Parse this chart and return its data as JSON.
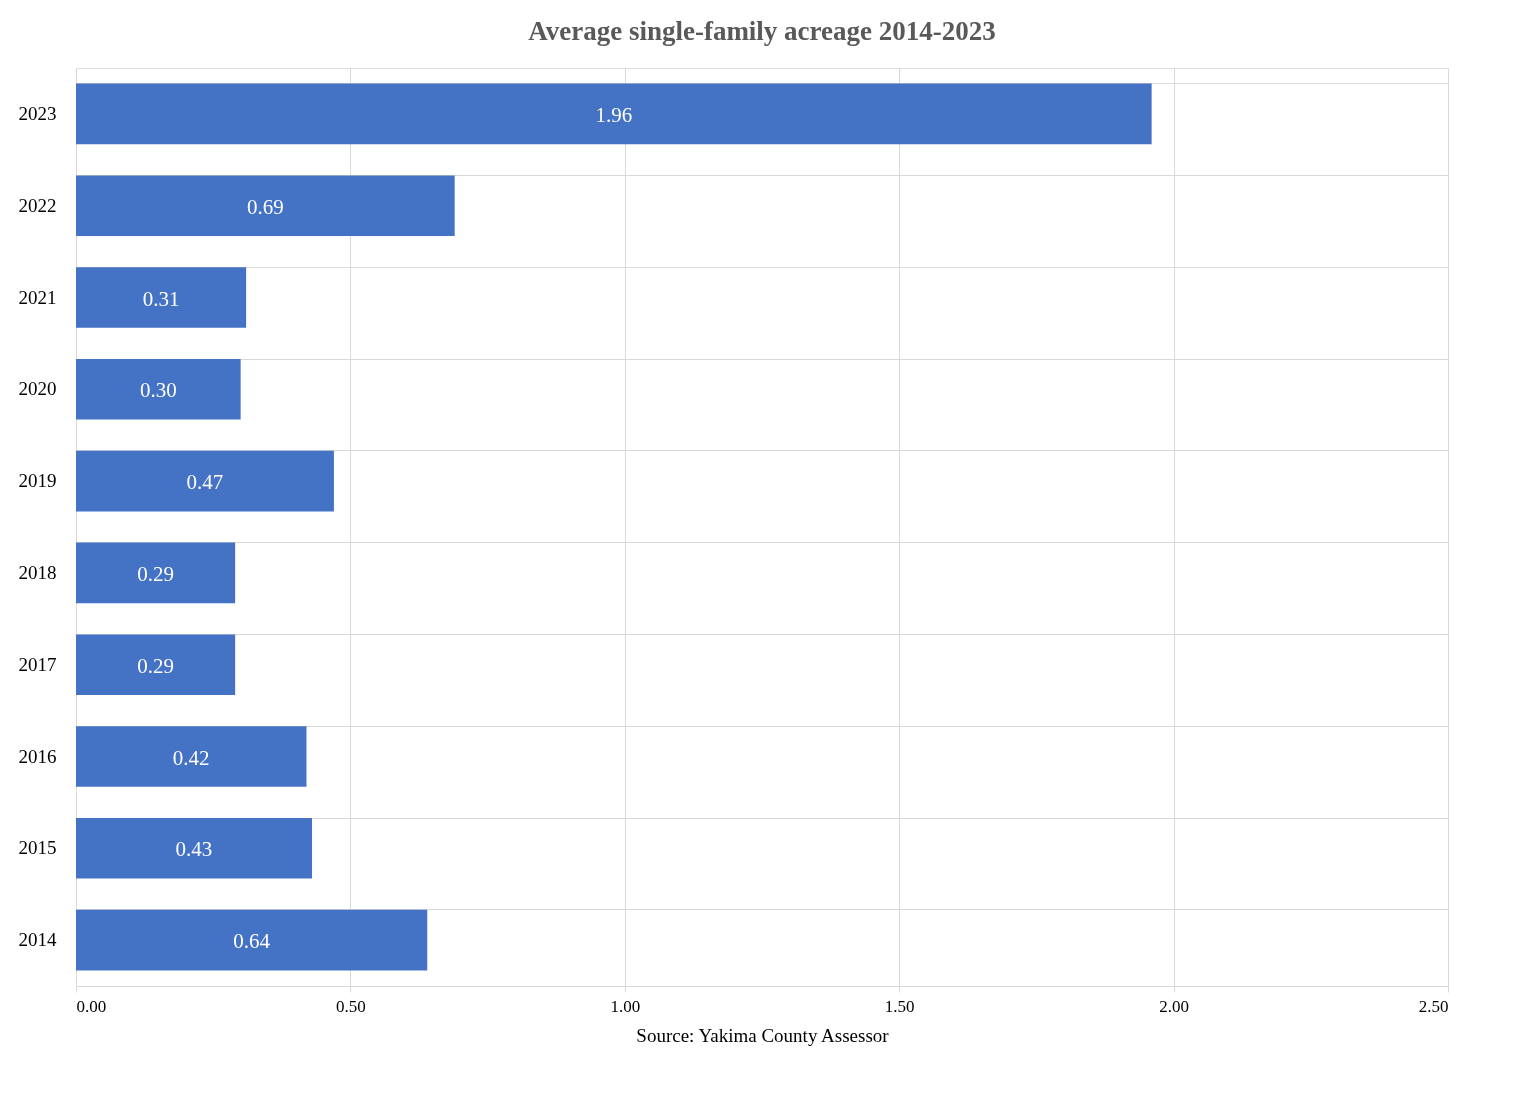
{
  "chart_data": {
    "type": "bar",
    "orientation": "horizontal",
    "title": "Average single-family acreage 2014-2023",
    "categories": [
      "2023",
      "2022",
      "2021",
      "2020",
      "2019",
      "2018",
      "2017",
      "2016",
      "2015",
      "2014"
    ],
    "values": [
      1.96,
      0.69,
      0.31,
      0.3,
      0.47,
      0.29,
      0.29,
      0.42,
      0.43,
      0.64
    ],
    "value_labels": [
      "1.96",
      "0.69",
      "0.31",
      "0.30",
      "0.47",
      "0.29",
      "0.29",
      "0.42",
      "0.43",
      "0.64"
    ],
    "color": "#4472c4",
    "xlim": [
      0,
      2.5
    ],
    "xticks": [
      {
        "value": 0,
        "label": "0.00"
      },
      {
        "value": 0.5,
        "label": "0.50"
      },
      {
        "value": 1,
        "label": "1.00"
      },
      {
        "value": 1.5,
        "label": "1.50"
      },
      {
        "value": 2,
        "label": "2.00"
      },
      {
        "value": 2.5,
        "label": "2.50"
      }
    ],
    "grid": true,
    "annotations": [
      "Source: Yakima County Assessor"
    ]
  }
}
